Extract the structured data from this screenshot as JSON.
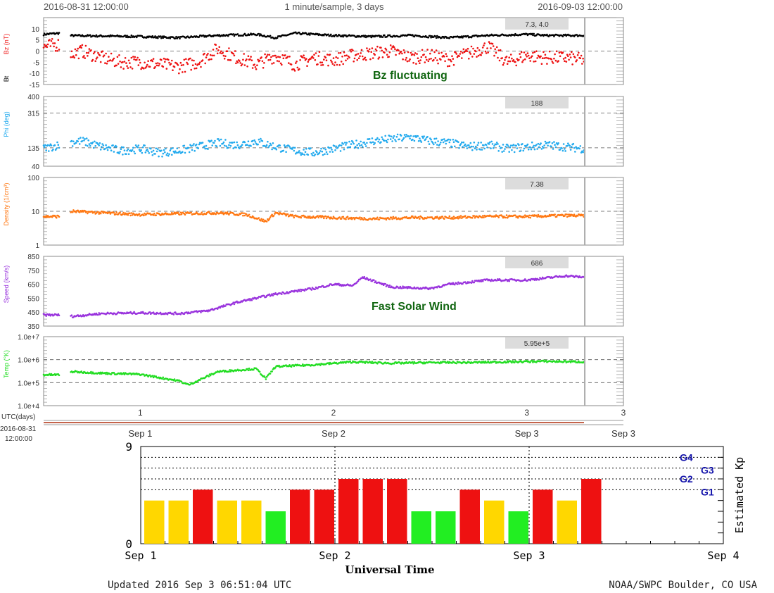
{
  "header": {
    "start": "2016-08-31 12:00:00",
    "center": "1 minute/sample, 3 days",
    "end": "2016-09-03 12:00:00"
  },
  "annotations": {
    "bz": "Bz fluctuating",
    "speed": "Fast Solar Wind"
  },
  "footer": {
    "updated": "Updated 2016 Sep  3 06:51:04 UTC",
    "credit": "NOAA/SWPC Boulder, CO USA"
  },
  "colors": {
    "bz": "#ee1111",
    "bt": "#000000",
    "phi": "#22aaee",
    "density": "#ff7711",
    "speed": "#9933dd",
    "temp": "#22dd22",
    "kp_green": "#22ee22",
    "kp_yellow": "#ffd700",
    "kp_red": "#ee1111",
    "annotation": "#116611",
    "gscale": "#1111aa"
  },
  "chart_data": [
    {
      "type": "line",
      "label_lines": [
        "Bz (nT)",
        "Bt"
      ],
      "ylim": [
        -15,
        15
      ],
      "yticks": [
        "10",
        "5",
        "0",
        "-5",
        "-10",
        "-15"
      ],
      "dashed_at": [
        0
      ],
      "current_value": "7.3, 4.0",
      "series": [
        {
          "name": "Bt",
          "x": [
            0.5,
            0.58,
            0.6,
            1.0,
            1.2,
            1.4,
            1.6,
            1.7,
            1.8,
            2.0,
            2.2,
            2.4,
            2.6,
            2.8,
            3.0,
            3.1,
            3.2,
            3.3
          ],
          "values": [
            7.5,
            8,
            7,
            6.5,
            6,
            7,
            7.5,
            6,
            8,
            7,
            6.5,
            7,
            6,
            7,
            7.5,
            7,
            7,
            7
          ]
        },
        {
          "name": "Bz",
          "x": [
            0.5,
            0.58,
            0.6,
            0.7,
            0.8,
            0.9,
            1.0,
            1.1,
            1.2,
            1.3,
            1.4,
            1.5,
            1.6,
            1.7,
            1.8,
            1.9,
            2.0,
            2.1,
            2.2,
            2.3,
            2.4,
            2.5,
            2.6,
            2.7,
            2.8,
            2.9,
            3.0,
            3.1,
            3.2,
            3.3
          ],
          "values": [
            2,
            3,
            -2,
            0,
            -3,
            -5,
            -5,
            -6,
            -7,
            -5,
            1,
            -3,
            -6,
            -2,
            -6,
            -3,
            -4,
            -2,
            -1,
            0,
            -3,
            -2,
            -4,
            -1,
            2,
            -5,
            -2,
            -3,
            -3,
            -4
          ]
        }
      ]
    },
    {
      "type": "scatter",
      "label_lines": [
        "Phi (deg)"
      ],
      "scale": "linear",
      "ylim": [
        40,
        400
      ],
      "yticks": [
        "400",
        "315",
        "135",
        "40"
      ],
      "dashed_at": [
        315,
        135
      ],
      "current_value": "188",
      "series": [
        {
          "name": "Phi",
          "x": [
            0.5,
            0.58,
            0.6,
            0.7,
            0.8,
            0.9,
            1.0,
            1.1,
            1.2,
            1.3,
            1.4,
            1.5,
            1.6,
            1.7,
            1.8,
            1.9,
            2.0,
            2.1,
            2.2,
            2.3,
            2.4,
            2.5,
            2.6,
            2.7,
            2.8,
            2.9,
            3.0,
            3.1,
            3.2,
            3.3
          ],
          "values": [
            130,
            150,
            160,
            170,
            140,
            120,
            130,
            110,
            120,
            140,
            160,
            150,
            170,
            140,
            120,
            110,
            130,
            150,
            170,
            180,
            190,
            170,
            160,
            140,
            150,
            130,
            140,
            150,
            140,
            130
          ]
        }
      ]
    },
    {
      "type": "line",
      "label_lines": [
        "Density  (1/cm³)"
      ],
      "scale": "log",
      "ylim": [
        1,
        100
      ],
      "yticks": [
        "100",
        "10",
        "1"
      ],
      "dashed_at": [
        10
      ],
      "current_value": "7.38",
      "series": [
        {
          "name": "Density",
          "x": [
            0.5,
            0.58,
            0.65,
            0.8,
            1.0,
            1.2,
            1.4,
            1.55,
            1.65,
            1.7,
            1.8,
            2.0,
            2.2,
            2.4,
            2.6,
            2.8,
            3.0,
            3.2,
            3.3
          ],
          "values": [
            7,
            7,
            10,
            9,
            8,
            8.5,
            9,
            8,
            5,
            9,
            7,
            6.5,
            6,
            6.5,
            6.5,
            7,
            7,
            7.5,
            7.4
          ]
        }
      ]
    },
    {
      "type": "line",
      "label_lines": [
        "Speed  (km/s)"
      ],
      "ylim": [
        350,
        850
      ],
      "yticks": [
        "850",
        "750",
        "650",
        "550",
        "450",
        "350"
      ],
      "dashed_at": [],
      "current_value": "686",
      "series": [
        {
          "name": "Speed",
          "x": [
            0.5,
            0.58,
            0.65,
            0.8,
            1.0,
            1.2,
            1.35,
            1.5,
            1.7,
            1.9,
            2.0,
            2.1,
            2.15,
            2.3,
            2.5,
            2.6,
            2.8,
            3.0,
            3.2,
            3.3
          ],
          "values": [
            430,
            430,
            420,
            440,
            445,
            440,
            460,
            520,
            580,
            620,
            650,
            640,
            700,
            630,
            620,
            650,
            680,
            680,
            710,
            700
          ]
        }
      ]
    },
    {
      "type": "line",
      "label_lines": [
        "Temp (°K)"
      ],
      "scale": "log",
      "ylim": [
        10000,
        10000000
      ],
      "yticks": [
        "1.0e+7",
        "1.0e+6",
        "1.0e+5",
        "1.0e+4"
      ],
      "dashed_at": [
        1000000,
        100000
      ],
      "current_value": "5.95e+5",
      "series": [
        {
          "name": "Temp",
          "x": [
            0.5,
            0.58,
            0.65,
            0.8,
            1.0,
            1.2,
            1.25,
            1.4,
            1.6,
            1.65,
            1.7,
            1.9,
            2.1,
            2.3,
            2.5,
            2.7,
            2.9,
            3.1,
            3.3
          ],
          "values": [
            220000,
            220000,
            300000,
            260000,
            230000,
            120000,
            80000,
            300000,
            400000,
            150000,
            500000,
            600000,
            800000,
            700000,
            750000,
            750000,
            800000,
            850000,
            800000
          ]
        }
      ]
    },
    {
      "type": "bar",
      "title": "",
      "xlabel": "Universal Time",
      "ylabel": "Estimated Kp",
      "xticks": [
        "Sep 1",
        "Sep 2",
        "Sep 3",
        "Sep 4"
      ],
      "ylim": [
        0,
        9
      ],
      "yticks": [
        "9",
        "0"
      ],
      "dotted_levels": [
        {
          "value": 8,
          "label": "G4"
        },
        {
          "value": 7,
          "label": "G3"
        },
        {
          "value": 6,
          "label": "G2"
        },
        {
          "value": 5,
          "label": "G1"
        }
      ],
      "values": [
        4,
        4,
        5,
        4,
        4,
        3,
        5,
        5,
        6,
        6,
        6,
        3,
        3,
        5,
        4,
        3,
        5,
        4,
        6
      ]
    }
  ],
  "time_axis": {
    "utc_label": "UTC(days)",
    "start_line1": "2016-08-31",
    "start_line2": "12:00:00",
    "day_ticks": [
      "1",
      "2",
      "3"
    ],
    "date_ticks": [
      "Sep 1",
      "Sep 2",
      "Sep 3"
    ]
  }
}
